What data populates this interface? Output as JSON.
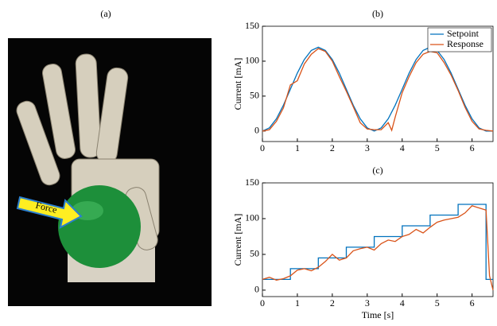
{
  "figure": {
    "panel_label": "(a)",
    "arrow_label": "Force"
  },
  "chart_data": [
    {
      "type": "line",
      "title": "(b)",
      "ylabel": "Current [mA]",
      "xlim": [
        0,
        6.6
      ],
      "ylim": [
        -15,
        150
      ],
      "xticks": [
        0,
        1,
        2,
        3,
        4,
        5,
        6
      ],
      "yticks": [
        0,
        50,
        100,
        150
      ],
      "legend": "upper right",
      "series": [
        {
          "name": "Setpoint",
          "color": "#0072bd",
          "x": [
            0,
            0.2,
            0.4,
            0.6,
            0.8,
            1.0,
            1.2,
            1.4,
            1.6,
            1.8,
            2.0,
            2.2,
            2.4,
            2.6,
            2.8,
            3.0,
            3.2,
            3.4,
            3.6,
            3.8,
            4.0,
            4.2,
            4.4,
            4.6,
            4.8,
            5.0,
            5.2,
            5.4,
            5.6,
            5.8,
            6.0,
            6.2,
            6.4,
            6.6
          ],
          "values": [
            0,
            4.6,
            17.6,
            37,
            60,
            83,
            102.4,
            115.4,
            120,
            115.4,
            102.4,
            83,
            60,
            37,
            17.6,
            4.6,
            0,
            4.6,
            17.6,
            37,
            60,
            83,
            102.4,
            115.4,
            120,
            115.4,
            102.4,
            83,
            60,
            37,
            17.6,
            4.6,
            0,
            0
          ]
        },
        {
          "name": "Response",
          "color": "#d95319",
          "x": [
            0,
            0.2,
            0.4,
            0.6,
            0.8,
            1.0,
            1.2,
            1.4,
            1.6,
            1.8,
            2.0,
            2.2,
            2.4,
            2.6,
            2.8,
            3.0,
            3.2,
            3.4,
            3.6,
            3.7,
            3.8,
            4.0,
            4.2,
            4.4,
            4.6,
            4.8,
            5.0,
            5.2,
            5.4,
            5.6,
            5.8,
            6.0,
            6.2,
            6.4,
            6.6
          ],
          "values": [
            0,
            2,
            14,
            33,
            66,
            72,
            96,
            110,
            118,
            114,
            100,
            78,
            57,
            35,
            12,
            3,
            2,
            2,
            12,
            1,
            20,
            55,
            78,
            98,
            110,
            114,
            112,
            98,
            80,
            58,
            34,
            14,
            3,
            1,
            0
          ]
        }
      ]
    },
    {
      "type": "line",
      "title": "(c)",
      "xlabel": "Time [s]",
      "ylabel": "Current [mA]",
      "xlim": [
        0,
        6.6
      ],
      "ylim": [
        -9,
        150
      ],
      "xticks": [
        0,
        1,
        2,
        3,
        4,
        5,
        6
      ],
      "yticks": [
        0,
        50,
        100,
        150
      ],
      "series": [
        {
          "name": "Setpoint",
          "color": "#0072bd",
          "x": [
            0,
            0.8,
            0.8,
            1.6,
            1.6,
            2.4,
            2.4,
            3.2,
            3.2,
            4.0,
            4.0,
            4.8,
            4.8,
            5.6,
            5.6,
            6.4,
            6.4,
            6.6
          ],
          "values": [
            15,
            15,
            30,
            30,
            45,
            45,
            60,
            60,
            75,
            75,
            90,
            90,
            105,
            105,
            120,
            120,
            15,
            15
          ]
        },
        {
          "name": "Response",
          "color": "#d95319",
          "x": [
            0,
            0.2,
            0.4,
            0.6,
            0.8,
            1.0,
            1.2,
            1.4,
            1.6,
            1.8,
            2.0,
            2.2,
            2.4,
            2.6,
            2.8,
            3.0,
            3.2,
            3.4,
            3.6,
            3.8,
            4.0,
            4.2,
            4.4,
            4.6,
            4.8,
            5.0,
            5.2,
            5.4,
            5.6,
            5.8,
            6.0,
            6.2,
            6.4,
            6.5,
            6.6
          ],
          "values": [
            15,
            18,
            14,
            16,
            20,
            28,
            30,
            27,
            32,
            40,
            50,
            42,
            45,
            55,
            58,
            60,
            56,
            65,
            70,
            68,
            75,
            78,
            85,
            80,
            88,
            95,
            98,
            100,
            102,
            108,
            118,
            115,
            112,
            20,
            0
          ]
        }
      ]
    }
  ]
}
